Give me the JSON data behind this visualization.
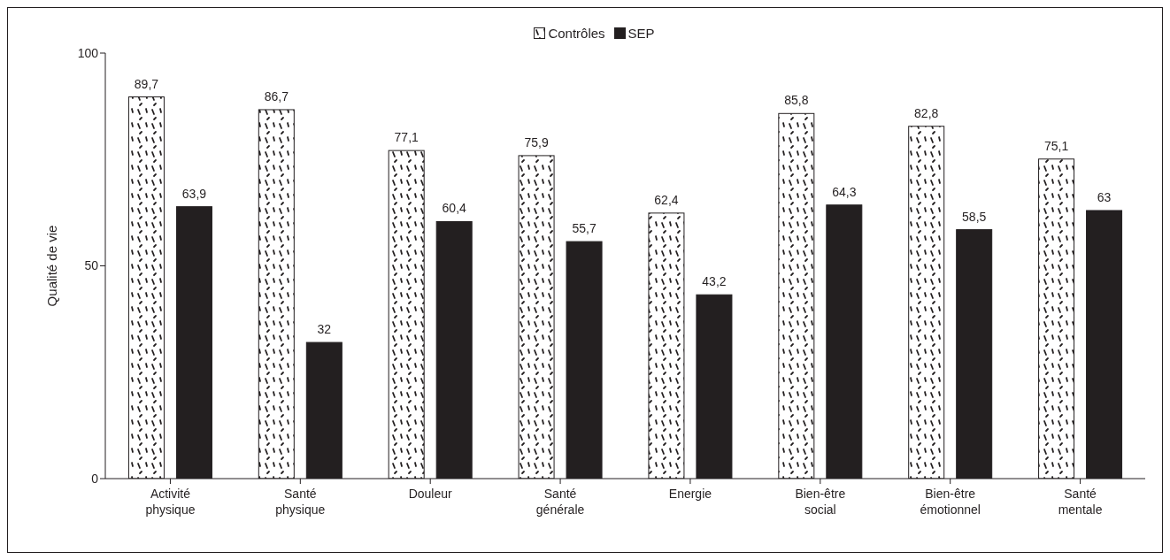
{
  "chart_data": {
    "type": "bar",
    "ylabel": "Qualité de vie",
    "categories": [
      "Activité physique",
      "Santé physique",
      "Douleur",
      "Santé générale",
      "Energie",
      "Bien-être social",
      "Bien-être émotionnel",
      "Santé mentale"
    ],
    "series": [
      {
        "name": "Contrôles",
        "color": "#ffffff",
        "values": [
          89.7,
          86.7,
          77.1,
          75.9,
          62.4,
          85.8,
          82.8,
          75.1
        ],
        "value_labels": [
          "89,7",
          "86,7",
          "77,1",
          "75,9",
          "62,4",
          "85,8",
          "82,8",
          "75,1"
        ]
      },
      {
        "name": "SEP",
        "color": "#231f20",
        "values": [
          63.9,
          32,
          60.4,
          55.7,
          43.2,
          64.3,
          58.5,
          63
        ],
        "value_labels": [
          "63,9",
          "32",
          "60,4",
          "55,7",
          "43,2",
          "64,3",
          "58,5",
          "63"
        ]
      }
    ],
    "ylim": [
      0,
      100
    ],
    "yticks": [
      0,
      50,
      100
    ],
    "grid": false,
    "legend": "top"
  }
}
